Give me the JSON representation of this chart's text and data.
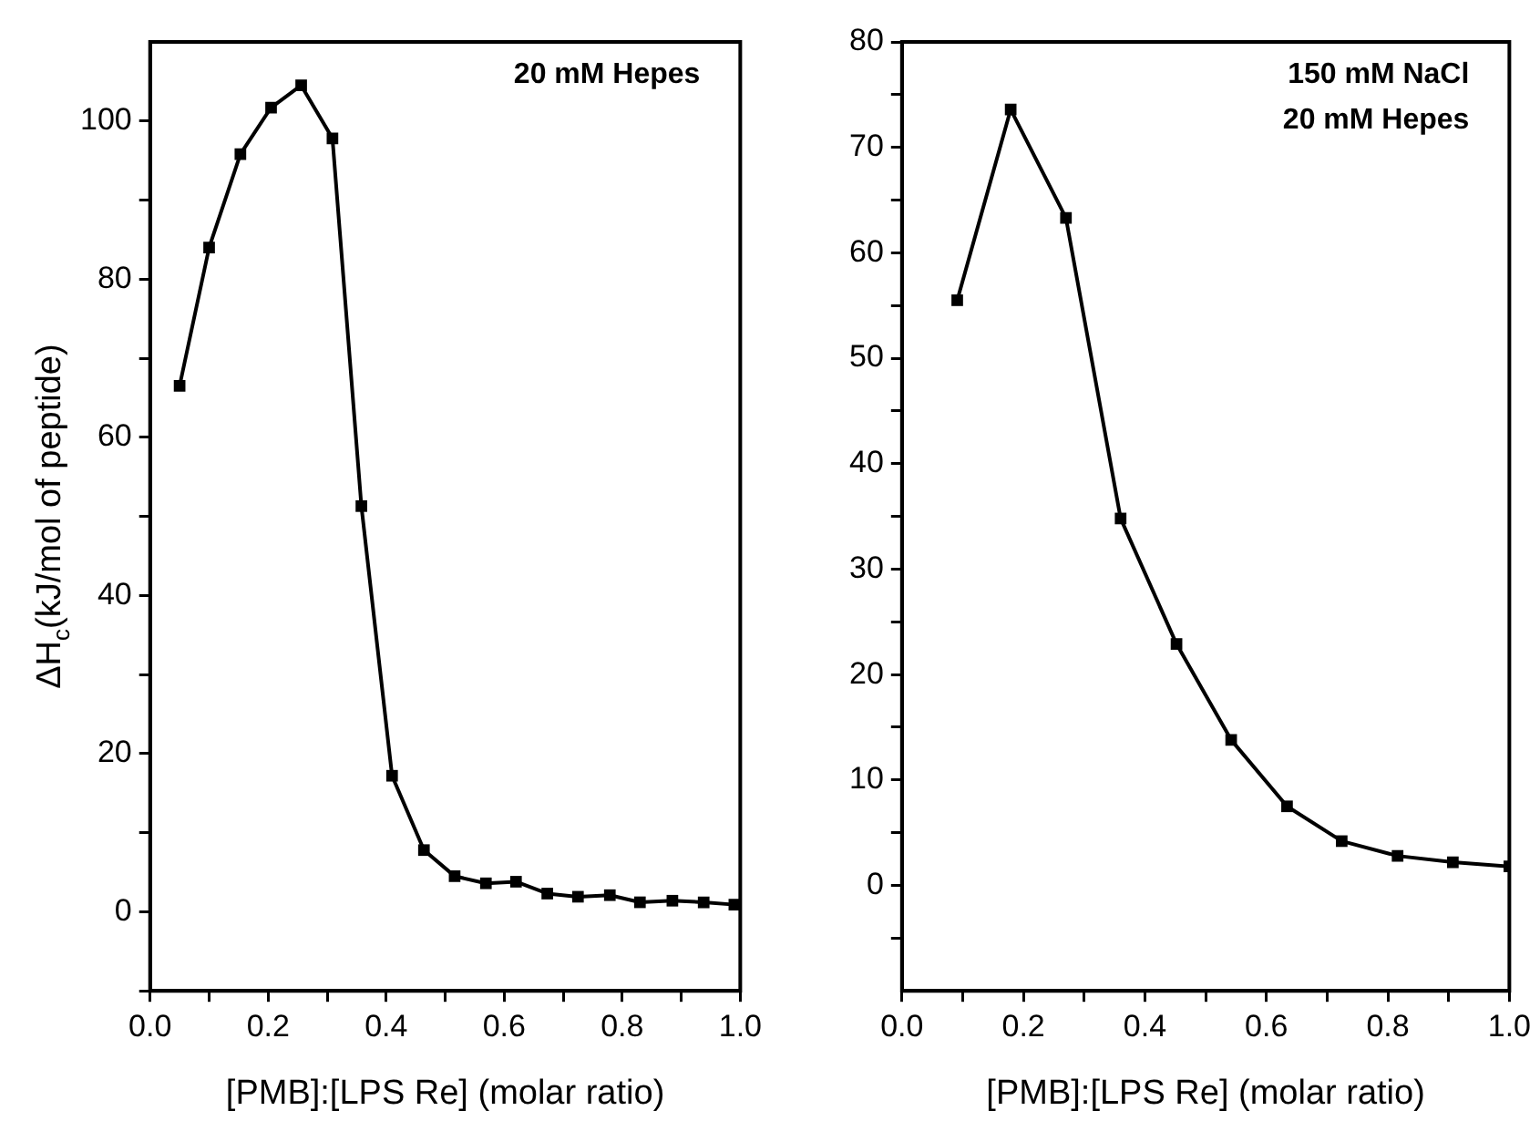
{
  "chart_data": [
    {
      "type": "line",
      "ylabel": "ΔH$_{c}$(kJ/mol of peptide)",
      "xlabel": "[PMB]:[LPS Re] (molar ratio)",
      "annotations": [
        "20 mM Hepes"
      ],
      "grid": false,
      "legend": false,
      "marker": "square",
      "line_style": "solid",
      "xlim": [
        0,
        1
      ],
      "xticks": [
        {
          "value": 0,
          "label": "0.0"
        },
        {
          "value": 0.1,
          "label": null
        },
        {
          "value": 0.2,
          "label": "0.2"
        },
        {
          "value": 0.3,
          "label": null
        },
        {
          "value": 0.4,
          "label": "0.4"
        },
        {
          "value": 0.5,
          "label": null
        },
        {
          "value": 0.6,
          "label": "0.6"
        },
        {
          "value": 0.7,
          "label": null
        },
        {
          "value": 0.8,
          "label": "0.8"
        },
        {
          "value": 0.9,
          "label": null
        },
        {
          "value": 1,
          "label": "1.0"
        }
      ],
      "ylim": [
        -10,
        110
      ],
      "yticks": [
        {
          "value": -10,
          "label": null
        },
        0,
        {
          "value": 10,
          "label": null
        },
        20,
        {
          "value": 30,
          "label": null
        },
        40,
        {
          "value": 50,
          "label": null
        },
        60,
        {
          "value": 70,
          "label": null
        },
        80,
        {
          "value": 90,
          "label": null
        },
        100
      ],
      "series": [
        {
          "color": "#000000",
          "x": [
            0.05,
            0.1,
            0.153,
            0.205,
            0.256,
            0.309,
            0.358,
            0.41,
            0.464,
            0.516,
            0.569,
            0.62,
            0.673,
            0.725,
            0.779,
            0.83,
            0.885,
            0.938,
            0.99
          ],
          "values": [
            66.5,
            84,
            95.8,
            101.7,
            104.5,
            97.8,
            51.3,
            17.2,
            7.8,
            4.5,
            3.6,
            3.8,
            2.3,
            1.9,
            2.1,
            1.2,
            1.4,
            1.2,
            0.9
          ]
        }
      ]
    },
    {
      "type": "line",
      "xlabel": "[PMB]:[LPS Re] (molar ratio)",
      "annotations": [
        "150 mM NaCl",
        "20 mM Hepes"
      ],
      "grid": false,
      "legend": false,
      "marker": "square",
      "line_style": "solid",
      "xlim": [
        0,
        1
      ],
      "xticks": [
        {
          "value": 0,
          "label": "0.0"
        },
        {
          "value": 0.1,
          "label": null
        },
        {
          "value": 0.2,
          "label": "0.2"
        },
        {
          "value": 0.3,
          "label": null
        },
        {
          "value": 0.4,
          "label": "0.4"
        },
        {
          "value": 0.5,
          "label": null
        },
        {
          "value": 0.6,
          "label": "0.6"
        },
        {
          "value": 0.7,
          "label": null
        },
        {
          "value": 0.8,
          "label": "0.8"
        },
        {
          "value": 0.9,
          "label": null
        },
        {
          "value": 1,
          "label": "1.0"
        }
      ],
      "ylim": [
        -10,
        80
      ],
      "yticks": [
        {
          "value": -5,
          "label": null
        },
        0,
        {
          "value": 5,
          "label": null
        },
        10,
        {
          "value": 15,
          "label": null
        },
        20,
        {
          "value": 25,
          "label": null
        },
        30,
        {
          "value": 35,
          "label": null
        },
        40,
        {
          "value": 45,
          "label": null
        },
        50,
        {
          "value": 55,
          "label": null
        },
        60,
        {
          "value": 65,
          "label": null
        },
        70,
        {
          "value": 75,
          "label": null
        },
        80
      ],
      "series": [
        {
          "color": "#000000",
          "x": [
            0.091,
            0.179,
            0.27,
            0.36,
            0.452,
            0.542,
            0.634,
            0.724,
            0.816,
            0.907,
            1.0
          ],
          "values": [
            55.5,
            73.6,
            63.3,
            34.8,
            22.9,
            13.8,
            7.5,
            4.2,
            2.8,
            2.2,
            1.8
          ]
        }
      ]
    }
  ]
}
